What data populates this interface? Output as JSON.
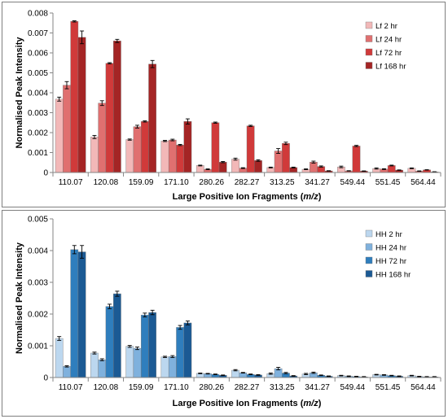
{
  "chart_data": [
    {
      "type": "bar",
      "categories": [
        "110.07",
        "120.08",
        "159.09",
        "171.10",
        "280.26",
        "282.27",
        "313.25",
        "341.27",
        "549.44",
        "551.45",
        "564.44"
      ],
      "xlabel": "Large Positive Ion Fragments (m/z)",
      "xlabel_main": "Large Positive Ion Fragments (",
      "xlabel_italic": "m/z",
      "xlabel_end": ")",
      "ylabel": "Normalised Peak Intensity",
      "ylim": [
        0,
        0.008
      ],
      "yticks": [
        "0",
        "0.001",
        "0.002",
        "0.003",
        "0.004",
        "0.005",
        "0.006",
        "0.007",
        "0.008"
      ],
      "legend_position": "top-right",
      "error_bars": true,
      "series": [
        {
          "name": "Lf 2 hr",
          "color": "#f2b8b8",
          "values": [
            0.00368,
            0.00178,
            0.00165,
            0.00158,
            0.00035,
            0.00067,
            0.00025,
            0.00016,
            0.00028,
            0.0002,
            0.00021
          ],
          "errors": [
            0.0001,
            8e-05,
            3e-05,
            3e-05,
            2e-05,
            5e-05,
            2e-05,
            2e-05,
            4e-05,
            3e-05,
            2e-05
          ]
        },
        {
          "name": "Lf 24 hr",
          "color": "#e07070",
          "values": [
            0.00438,
            0.00348,
            0.0023,
            0.00163,
            0.00016,
            0.00022,
            0.00108,
            0.00052,
            8e-05,
            0.00017,
            7e-05
          ],
          "errors": [
            0.00018,
            0.00012,
            7e-05,
            4e-05,
            2e-05,
            2e-05,
            0.00012,
            5e-05,
            1e-05,
            2e-05,
            1e-05
          ]
        },
        {
          "name": "Lf 72 hr",
          "color": "#d03a3a",
          "values": [
            0.00758,
            0.00548,
            0.00256,
            0.00138,
            0.0025,
            0.00234,
            0.00146,
            0.0003,
            0.00133,
            0.00035,
            0.00013
          ],
          "errors": [
            3e-05,
            3e-05,
            3e-05,
            3e-05,
            3e-05,
            3e-05,
            6e-05,
            3e-05,
            3e-05,
            2e-05,
            1e-05
          ]
        },
        {
          "name": "Lf 168 hr",
          "color": "#a42525",
          "values": [
            0.00678,
            0.0066,
            0.00544,
            0.00256,
            0.00052,
            0.0006,
            0.00025,
            8e-05,
            7e-05,
            0.00012,
            3e-05
          ],
          "errors": [
            0.00032,
            8e-05,
            0.00018,
            0.00013,
            3e-05,
            4e-05,
            2e-05,
            1e-05,
            1e-05,
            1e-05,
            1e-05
          ]
        }
      ]
    },
    {
      "type": "bar",
      "categories": [
        "110.07",
        "120.08",
        "159.09",
        "171.10",
        "280.26",
        "282.27",
        "313.25",
        "341.27",
        "549.44",
        "551.45",
        "564.44"
      ],
      "xlabel": "Large Positive Ion Fragments (m/z)",
      "xlabel_main": "Large Positive Ion Fragments (",
      "xlabel_italic": "m/z",
      "xlabel_end": ")",
      "ylabel": "Normalised Peak Intensity",
      "ylim": [
        0,
        0.005
      ],
      "yticks": [
        "0",
        "0.001",
        "0.002",
        "0.003",
        "0.004",
        "0.005"
      ],
      "legend_position": "top-right",
      "error_bars": true,
      "series": [
        {
          "name": "HH 2 hr",
          "color": "#bcd7ef",
          "values": [
            0.00123,
            0.00077,
            0.00098,
            0.00065,
            0.00013,
            0.00023,
            0.00012,
            0.00011,
            6e-05,
            9e-05,
            6e-05
          ],
          "errors": [
            6e-05,
            3e-05,
            3e-05,
            2e-05,
            1e-05,
            2e-05,
            2e-05,
            2e-05,
            1e-05,
            1e-05,
            1e-05
          ]
        },
        {
          "name": "HH 24 hr",
          "color": "#7fb1dd",
          "values": [
            0.00035,
            0.00056,
            0.00092,
            0.00066,
            0.00012,
            0.00015,
            0.00028,
            0.00015,
            4e-05,
            8e-05,
            3e-05
          ],
          "errors": [
            2e-05,
            3e-05,
            4e-05,
            3e-05,
            1e-05,
            1e-05,
            4e-05,
            2e-05,
            1e-05,
            1e-05,
            1e-05
          ]
        },
        {
          "name": "HH 72 hr",
          "color": "#2f7ebd",
          "values": [
            0.00403,
            0.00224,
            0.00197,
            0.00158,
            0.0001,
            0.0001,
            0.00014,
            7e-05,
            3e-05,
            6e-05,
            2e-05
          ],
          "errors": [
            0.00013,
            7e-05,
            6e-05,
            6e-05,
            1e-05,
            1e-05,
            2e-05,
            1e-05,
            1e-05,
            1e-05,
            1e-05
          ]
        },
        {
          "name": "HH 168 hr",
          "color": "#1b5a94",
          "values": [
            0.00396,
            0.00264,
            0.00205,
            0.00172,
            7e-05,
            8e-05,
            5e-05,
            4e-05,
            2e-05,
            4e-05,
            2e-05
          ],
          "errors": [
            0.0002,
            8e-05,
            7e-05,
            6e-05,
            1e-05,
            1e-05,
            1e-05,
            1e-05,
            1e-05,
            1e-05,
            1e-05
          ]
        }
      ]
    }
  ]
}
